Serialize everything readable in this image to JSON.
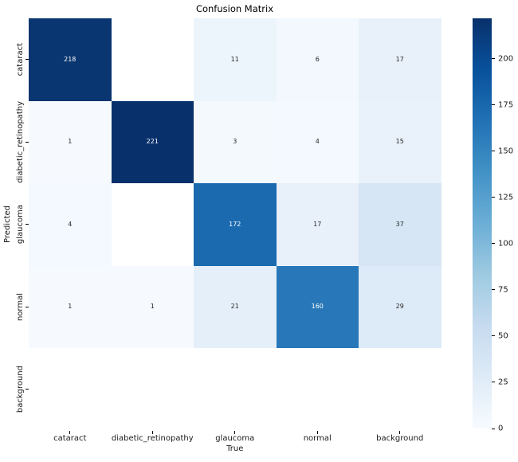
{
  "chart_data": {
    "type": "heatmap",
    "title": "Confusion Matrix",
    "xlabel": "True",
    "ylabel": "Predicted",
    "x_categories": [
      "cataract",
      "diabetic_retinopathy",
      "glaucoma",
      "normal",
      "background"
    ],
    "y_categories": [
      "cataract",
      "diabetic_retinopathy",
      "glaucoma",
      "normal",
      "background"
    ],
    "matrix": [
      [
        218,
        null,
        11,
        6,
        17
      ],
      [
        1,
        221,
        3,
        4,
        15
      ],
      [
        4,
        null,
        172,
        17,
        37
      ],
      [
        1,
        1,
        21,
        160,
        29
      ],
      [
        null,
        null,
        null,
        null,
        null
      ]
    ],
    "cell_colors": [
      [
        "#093570",
        "#ffffff",
        "#edf5fc",
        "#f2f8fd",
        "#e8f1fa"
      ],
      [
        "#f6fafe",
        "#08306b",
        "#f4f9fe",
        "#f3f9fe",
        "#e9f2fb"
      ],
      [
        "#f3f9fe",
        "#ffffff",
        "#1b6aaf",
        "#e8f1fa",
        "#d6e6f4"
      ],
      [
        "#f6fafe",
        "#f6fafe",
        "#e4eff9",
        "#2878b9",
        "#ddeaf7"
      ],
      [
        "#ffffff",
        "#ffffff",
        "#ffffff",
        "#ffffff",
        "#ffffff"
      ]
    ],
    "annotation_light_text": "#ffffff",
    "annotation_dark_text": "#262626",
    "grid": false,
    "legend_position": "right-colorbar",
    "colorbar": {
      "min": 0,
      "max": 221.75,
      "tick_values": [
        0,
        25,
        50,
        75,
        100,
        125,
        150,
        175,
        200
      ],
      "gradient_stops": [
        "#f7fbff",
        "#deebf7",
        "#c6dbef",
        "#9ecae1",
        "#6baed6",
        "#4292c6",
        "#2171b5",
        "#08519c",
        "#08306b"
      ]
    }
  }
}
